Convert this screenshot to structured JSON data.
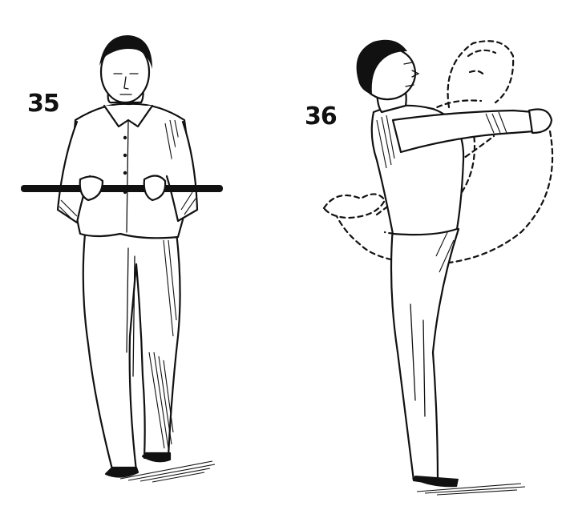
{
  "figures": [
    {
      "id": "35",
      "label": "35"
    },
    {
      "id": "36",
      "label": "36"
    }
  ],
  "colors": {
    "ink": "#111111",
    "paper": "#ffffff"
  }
}
